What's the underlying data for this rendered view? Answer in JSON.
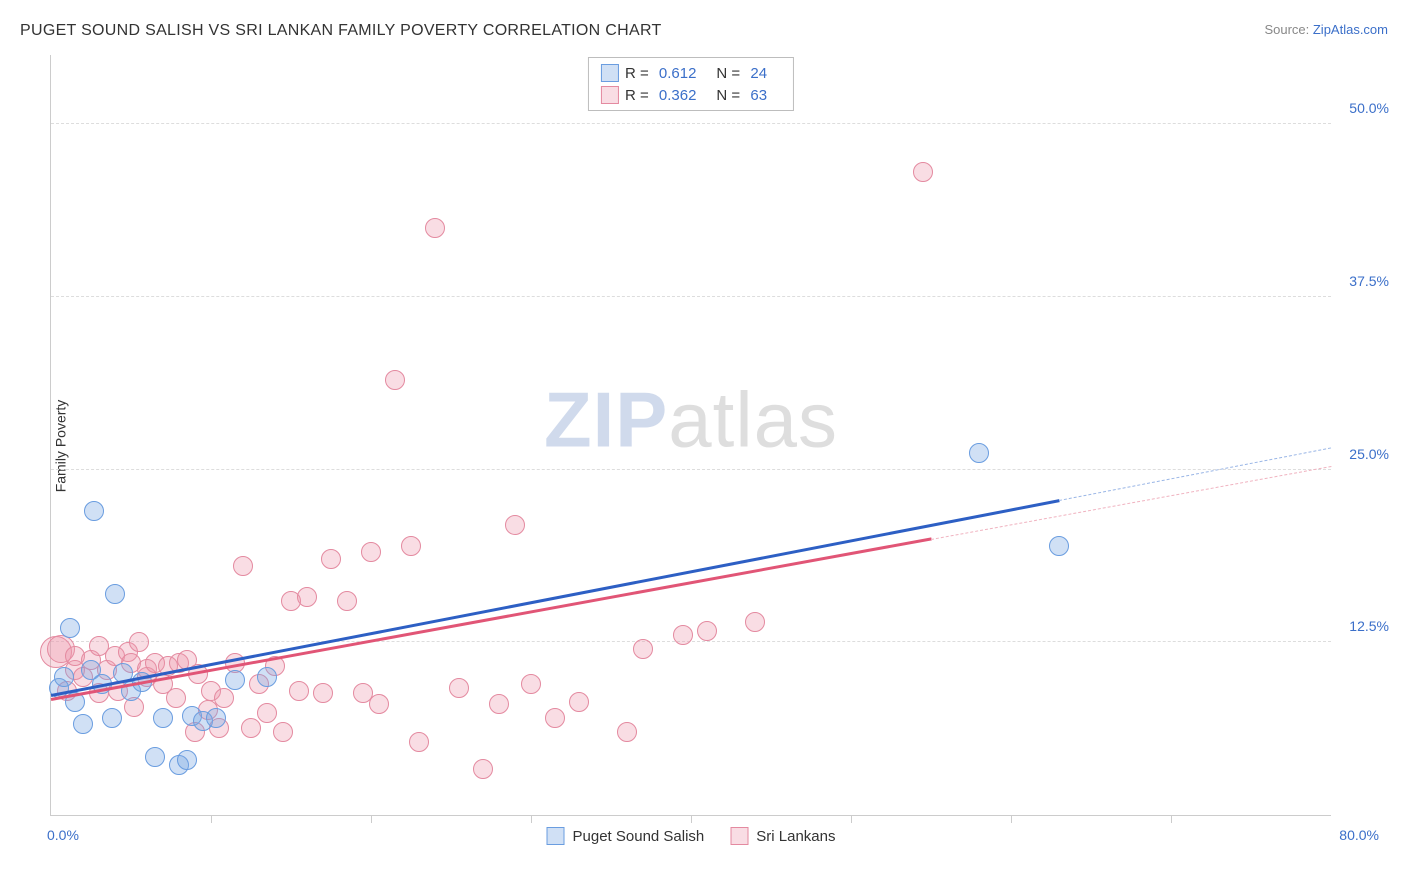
{
  "title": "PUGET SOUND SALISH VS SRI LANKAN FAMILY POVERTY CORRELATION CHART",
  "source_label": "Source: ",
  "source_name": "ZipAtlas.com",
  "y_axis_label": "Family Poverty",
  "watermark": {
    "part1": "ZIP",
    "part2": "atlas"
  },
  "chart": {
    "type": "scatter",
    "xlim": [
      0,
      80
    ],
    "ylim": [
      0,
      55
    ],
    "x_min_label": "0.0%",
    "x_max_label": "80.0%",
    "x_ticks": [
      10,
      20,
      30,
      40,
      50,
      60,
      70
    ],
    "y_gridlines": [
      12.5,
      25.0,
      37.5,
      50.0
    ],
    "y_tick_labels": [
      "12.5%",
      "25.0%",
      "37.5%",
      "50.0%"
    ],
    "background_color": "#ffffff",
    "grid_color": "#dddddd",
    "axis_color": "#cccccc",
    "label_color": "#3b6fc9",
    "default_radius": 10
  },
  "series": {
    "blue": {
      "name": "Puget Sound Salish",
      "fill": "rgba(120,165,225,0.35)",
      "stroke": "#6a9de0",
      "trend_color": "#2d5fc4",
      "trend_dash_color": "#9ab6e6",
      "R": "0.612",
      "N": "24",
      "trend": {
        "x1": 0,
        "y1": 8.6,
        "x2": 80,
        "y2": 26.5,
        "solid_until_x": 63
      },
      "points": [
        {
          "x": 0.5,
          "y": 9.2
        },
        {
          "x": 0.8,
          "y": 10.0
        },
        {
          "x": 1.2,
          "y": 13.5
        },
        {
          "x": 1.5,
          "y": 8.2
        },
        {
          "x": 2.0,
          "y": 6.6
        },
        {
          "x": 2.5,
          "y": 10.5
        },
        {
          "x": 2.7,
          "y": 22.0
        },
        {
          "x": 3.2,
          "y": 9.5
        },
        {
          "x": 3.8,
          "y": 7.0
        },
        {
          "x": 4.0,
          "y": 16.0
        },
        {
          "x": 4.5,
          "y": 10.3
        },
        {
          "x": 5.0,
          "y": 9.0
        },
        {
          "x": 5.7,
          "y": 9.6
        },
        {
          "x": 6.5,
          "y": 4.2
        },
        {
          "x": 7.0,
          "y": 7.0
        },
        {
          "x": 8.0,
          "y": 3.6
        },
        {
          "x": 8.5,
          "y": 4.0
        },
        {
          "x": 8.8,
          "y": 7.2
        },
        {
          "x": 9.5,
          "y": 6.8
        },
        {
          "x": 10.3,
          "y": 7.0
        },
        {
          "x": 11.5,
          "y": 9.8
        },
        {
          "x": 13.5,
          "y": 10.0
        },
        {
          "x": 58.0,
          "y": 26.2
        },
        {
          "x": 63.0,
          "y": 19.5
        }
      ]
    },
    "pink": {
      "name": "Sri Lankans",
      "fill": "rgba(235,150,170,0.32)",
      "stroke": "#e48aa0",
      "trend_color": "#e15576",
      "trend_dash_color": "#f0b3c0",
      "R": "0.362",
      "N": "63",
      "trend": {
        "x1": 0,
        "y1": 8.3,
        "x2": 80,
        "y2": 25.2,
        "solid_until_x": 55
      },
      "points": [
        {
          "x": 0.3,
          "y": 11.8,
          "r": 16
        },
        {
          "x": 0.6,
          "y": 12.0,
          "r": 14
        },
        {
          "x": 1.0,
          "y": 9.0
        },
        {
          "x": 1.5,
          "y": 10.5
        },
        {
          "x": 1.5,
          "y": 11.5
        },
        {
          "x": 2.0,
          "y": 10.0
        },
        {
          "x": 2.5,
          "y": 11.2
        },
        {
          "x": 3.0,
          "y": 8.8
        },
        {
          "x": 3.0,
          "y": 12.2
        },
        {
          "x": 3.5,
          "y": 10.5
        },
        {
          "x": 4.0,
          "y": 11.5
        },
        {
          "x": 4.2,
          "y": 9.0
        },
        {
          "x": 4.8,
          "y": 11.8
        },
        {
          "x": 5.0,
          "y": 11.0
        },
        {
          "x": 5.2,
          "y": 7.8
        },
        {
          "x": 5.5,
          "y": 12.5
        },
        {
          "x": 6.0,
          "y": 10.0
        },
        {
          "x": 6.0,
          "y": 10.6
        },
        {
          "x": 6.5,
          "y": 11.0
        },
        {
          "x": 7.0,
          "y": 9.5
        },
        {
          "x": 7.3,
          "y": 10.8
        },
        {
          "x": 7.8,
          "y": 8.5
        },
        {
          "x": 8.0,
          "y": 11.0
        },
        {
          "x": 8.5,
          "y": 11.2
        },
        {
          "x": 9.0,
          "y": 6.0
        },
        {
          "x": 9.2,
          "y": 10.2
        },
        {
          "x": 9.8,
          "y": 7.6
        },
        {
          "x": 10.0,
          "y": 9.0
        },
        {
          "x": 10.5,
          "y": 6.3
        },
        {
          "x": 10.8,
          "y": 8.5
        },
        {
          "x": 11.5,
          "y": 11.0
        },
        {
          "x": 12.0,
          "y": 18.0
        },
        {
          "x": 12.5,
          "y": 6.3
        },
        {
          "x": 13.0,
          "y": 9.5
        },
        {
          "x": 13.5,
          "y": 7.4
        },
        {
          "x": 14.0,
          "y": 10.8
        },
        {
          "x": 14.5,
          "y": 6.0
        },
        {
          "x": 15.0,
          "y": 15.5
        },
        {
          "x": 15.5,
          "y": 9.0
        },
        {
          "x": 16.0,
          "y": 15.8
        },
        {
          "x": 17.0,
          "y": 8.8
        },
        {
          "x": 17.5,
          "y": 18.5
        },
        {
          "x": 18.5,
          "y": 15.5
        },
        {
          "x": 19.5,
          "y": 8.8
        },
        {
          "x": 20.0,
          "y": 19.0
        },
        {
          "x": 20.5,
          "y": 8.0
        },
        {
          "x": 21.5,
          "y": 31.5
        },
        {
          "x": 22.5,
          "y": 19.5
        },
        {
          "x": 23.0,
          "y": 5.3
        },
        {
          "x": 24.0,
          "y": 42.5
        },
        {
          "x": 25.5,
          "y": 9.2
        },
        {
          "x": 27.0,
          "y": 3.3
        },
        {
          "x": 28.0,
          "y": 8.0
        },
        {
          "x": 29.0,
          "y": 21.0
        },
        {
          "x": 30.0,
          "y": 9.5
        },
        {
          "x": 31.5,
          "y": 7.0
        },
        {
          "x": 33.0,
          "y": 8.2
        },
        {
          "x": 36.0,
          "y": 6.0
        },
        {
          "x": 37.0,
          "y": 12.0
        },
        {
          "x": 39.5,
          "y": 13.0
        },
        {
          "x": 41.0,
          "y": 13.3
        },
        {
          "x": 44.0,
          "y": 14.0
        },
        {
          "x": 54.5,
          "y": 46.5
        }
      ]
    }
  },
  "legend_bottom": [
    {
      "key": "blue"
    },
    {
      "key": "pink"
    }
  ]
}
